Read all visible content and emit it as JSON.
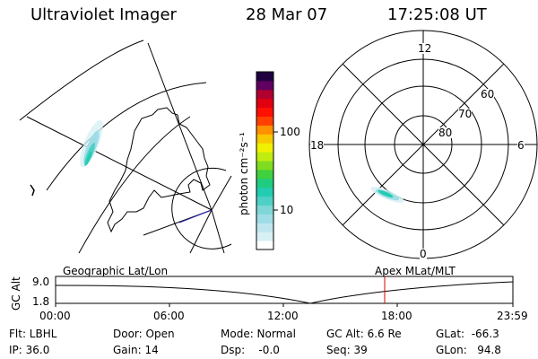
{
  "header": {
    "title": "Ultraviolet Imager",
    "date": "28 Mar 07",
    "time": "17:25:08 UT"
  },
  "colorbar": {
    "unit_label": "photon cm⁻²s⁻¹",
    "ticks": [
      "100",
      "10"
    ],
    "colors": [
      "#ffffff",
      "#d8f0f4",
      "#bfe6ee",
      "#9fdde6",
      "#7fd6d6",
      "#4fd0c6",
      "#22ccb0",
      "#20cc80",
      "#40d040",
      "#80dc20",
      "#c0ec10",
      "#f0f000",
      "#f8c800",
      "#ff9000",
      "#ff4000",
      "#ff1000",
      "#e00010",
      "#b00030",
      "#600060",
      "#200040"
    ]
  },
  "polar": {
    "hour_labels": {
      "top": "12",
      "left": "18",
      "right": "6",
      "bottom": "0"
    },
    "lat_labels": [
      "60",
      "70",
      "80"
    ]
  },
  "timeline": {
    "left_title": "Geographic Lat/Lon",
    "right_title": "Apex MLat/MLT",
    "y_axis_label": "GC Alt",
    "y_ticks": [
      "9.0",
      "1.8"
    ],
    "x_ticks": [
      "00:00",
      "06:00",
      "12:00",
      "18:00",
      "23:59"
    ]
  },
  "info": {
    "filter": "Flt: LBHL",
    "ip": "IP: 36.0",
    "door": "Door: Open",
    "gain": "Gain: 14",
    "mode": "Mode: Normal",
    "dsp": "Dsp:    -0.0",
    "gc_alt": "GC Alt: 6.6 Re",
    "seq": "Seq: 39",
    "glat": "GLat:  -66.3",
    "glon": "GLon:   94.8"
  },
  "colors": {
    "marker": "#dd0000",
    "aurora_core": "#22ccb0",
    "aurora_outer": "#9fdde6"
  }
}
